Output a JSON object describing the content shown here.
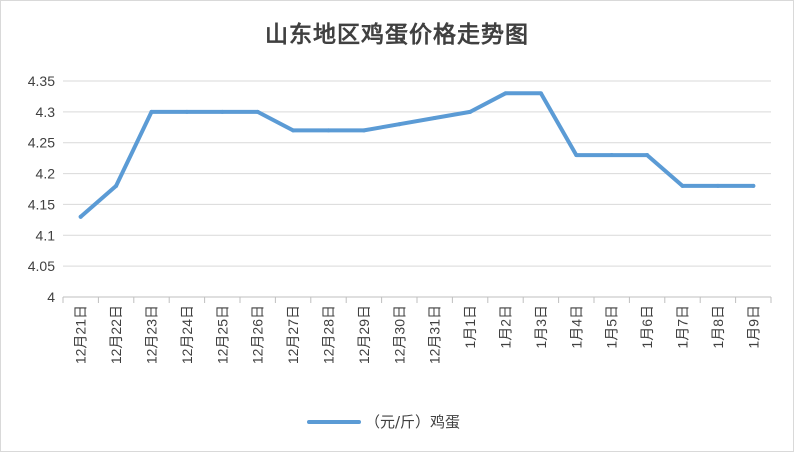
{
  "chart_data": {
    "type": "line",
    "title": "山东地区鸡蛋价格走势图",
    "categories": [
      "12月21日",
      "12月22日",
      "12月23日",
      "12月24日",
      "12月25日",
      "12月26日",
      "12月27日",
      "12月28日",
      "12月29日",
      "12月30日",
      "12月31日",
      "1月1日",
      "1月2日",
      "1月3日",
      "1月4日",
      "1月5日",
      "1月6日",
      "1月7日",
      "1月8日",
      "1月9日"
    ],
    "series": [
      {
        "name": "（元/斤）鸡蛋",
        "color": "#5b9bd5",
        "values": [
          4.13,
          4.18,
          4.3,
          4.3,
          4.3,
          4.3,
          4.27,
          4.27,
          4.27,
          4.28,
          4.29,
          4.3,
          4.33,
          4.33,
          4.23,
          4.23,
          4.23,
          4.18,
          4.18,
          4.18
        ]
      }
    ],
    "yticks": [
      "4",
      "4.05",
      "4.1",
      "4.15",
      "4.2",
      "4.25",
      "4.3",
      "4.35"
    ],
    "ylim": [
      4,
      4.35
    ],
    "xlabel": "",
    "ylabel": "",
    "grid": true,
    "legend_position": "bottom"
  }
}
